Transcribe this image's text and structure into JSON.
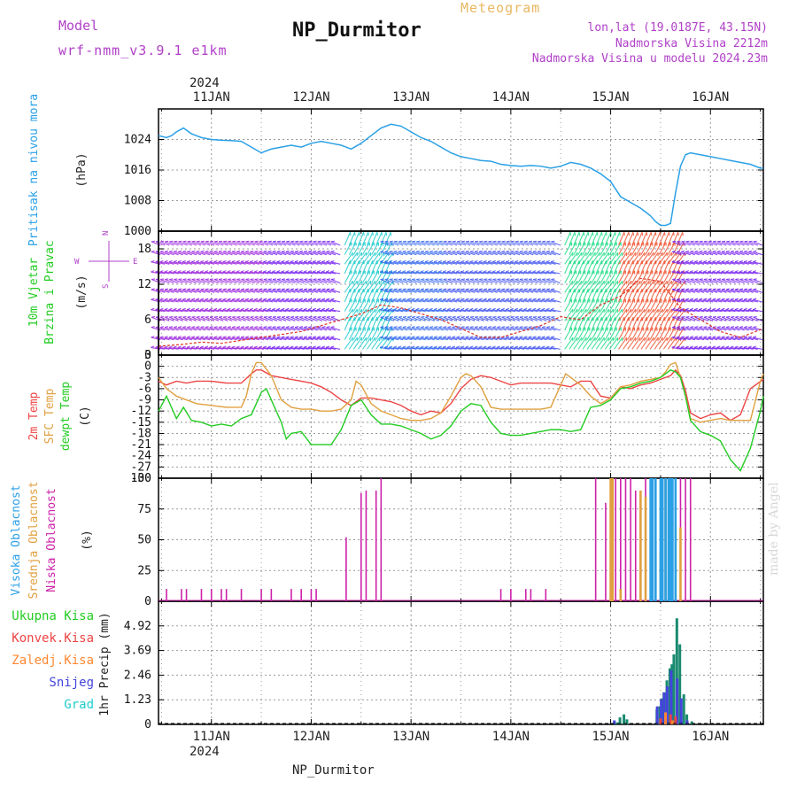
{
  "header": {
    "model_label": "Model",
    "model_name": "wrf-nmm_v3.9.1 e1km",
    "title": "NP_Durmitor",
    "subtitle": "Meteogram",
    "location_1": "lon,lat (19.0187E, 43.15N)",
    "location_2": "Nadmorska Visina 2212m",
    "location_3": "Nadmorska Visina u modelu 2024.23m",
    "footer": "NP_Durmitor",
    "credit": "made by Angel"
  },
  "colors": {
    "pressure": "#2aa0e6",
    "t2m": "#ee4444",
    "tsfc": "#e0a040",
    "dewpt": "#22cc22",
    "cloud_high": "#2aa0e6",
    "cloud_mid": "#e0a040",
    "cloud_low": "#cc22aa",
    "precip_total": "#22cc22",
    "precip_conv": "#ee4444",
    "precip_frz": "#ff8833",
    "precip_snow": "#4444dd",
    "precip_grad": "#22cccc",
    "teal_bar": "#1a8a70"
  },
  "chart_data": [
    {
      "type": "line",
      "panel": "pressure",
      "ylabel": "(hPa)",
      "side_label": "Pritisak na nivou mora",
      "ylim": [
        1000,
        1032
      ],
      "yticks": [
        "1024",
        "1016",
        "1008",
        "1000"
      ],
      "top_year": "2024",
      "x_ticks": [
        "11JAN",
        "12JAN",
        "13JAN",
        "14JAN",
        "15JAN",
        "16JAN"
      ],
      "x_start_day": 10.47,
      "x_end_day": 16.53,
      "series": [
        {
          "x": [
            10.47,
            10.55,
            10.6,
            10.65,
            10.72,
            10.8,
            10.9,
            11.0,
            11.1,
            11.2,
            11.3,
            11.4,
            11.5,
            11.6,
            11.7,
            11.8,
            11.9,
            12.0,
            12.1,
            12.2,
            12.3,
            12.4,
            12.5,
            12.6,
            12.7,
            12.8,
            12.9,
            13.0,
            13.1,
            13.2,
            13.3,
            13.4,
            13.5,
            13.6,
            13.7,
            13.8,
            13.9,
            14.0,
            14.1,
            14.2,
            14.3,
            14.4,
            14.5,
            14.6,
            14.7,
            14.8,
            14.9,
            15.0,
            15.05,
            15.1,
            15.2,
            15.3,
            15.4,
            15.45,
            15.5,
            15.55,
            15.6,
            15.65,
            15.7,
            15.75,
            15.8,
            15.9,
            16.0,
            16.1,
            16.2,
            16.3,
            16.4,
            16.5,
            16.53
          ],
          "y": [
            1025.0,
            1024.5,
            1025.0,
            1026.0,
            1027.0,
            1025.5,
            1024.5,
            1024.0,
            1023.8,
            1023.7,
            1023.5,
            1022.0,
            1020.5,
            1021.5,
            1022.0,
            1022.5,
            1022.0,
            1023.0,
            1023.5,
            1023.0,
            1022.5,
            1021.5,
            1023.0,
            1025.0,
            1027.0,
            1028.0,
            1027.5,
            1026.0,
            1024.5,
            1023.5,
            1022.0,
            1020.5,
            1019.5,
            1019.0,
            1018.5,
            1018.3,
            1017.5,
            1017.2,
            1017.0,
            1017.2,
            1017.0,
            1016.5,
            1017.0,
            1018.0,
            1017.5,
            1016.5,
            1015.0,
            1013.0,
            1011.0,
            1009.0,
            1007.5,
            1006.0,
            1004.0,
            1002.5,
            1001.5,
            1001.5,
            1002.0,
            1010.0,
            1017.0,
            1020.0,
            1020.5,
            1020.0,
            1019.5,
            1019.0,
            1018.5,
            1018.0,
            1017.5,
            1016.5,
            1016.5
          ]
        }
      ]
    },
    {
      "type": "line",
      "panel": "wind",
      "ylabel": "(m/s)",
      "side_label_1": "10m Vjetar",
      "side_label_2": "Brzina i Pravac",
      "compass": [
        "W",
        "E",
        "N",
        "S"
      ],
      "ylim": [
        0,
        21
      ],
      "yticks": [
        "18",
        "12",
        "6",
        "0"
      ],
      "series": [
        {
          "name": "Brzina",
          "x": [
            10.47,
            10.7,
            10.9,
            11.1,
            11.3,
            11.5,
            11.7,
            11.9,
            12.1,
            12.3,
            12.5,
            12.7,
            12.9,
            13.1,
            13.3,
            13.5,
            13.7,
            13.9,
            14.1,
            14.3,
            14.5,
            14.7,
            14.9,
            15.1,
            15.3,
            15.5,
            15.7,
            15.9,
            16.1,
            16.3,
            16.53
          ],
          "y": [
            1.5,
            1.8,
            2.2,
            2.0,
            2.5,
            3.0,
            3.5,
            4.0,
            5.0,
            6.0,
            7.0,
            8.5,
            8.0,
            7.0,
            6.0,
            4.5,
            3.0,
            3.0,
            4.0,
            5.0,
            6.5,
            6.0,
            8.5,
            10.0,
            13.0,
            12.5,
            8.0,
            6.0,
            4.0,
            3.0,
            4.5
          ]
        }
      ],
      "arrow_speed_bands": [
        {
          "x0": 10.47,
          "x1": 11.6,
          "speed": "low",
          "color": "#9922dd"
        },
        {
          "x0": 11.6,
          "x1": 12.3,
          "speed": "medium",
          "color": "#7722ee"
        },
        {
          "x0": 12.3,
          "x1": 12.75,
          "speed": "high",
          "color": "#22cccc"
        },
        {
          "x0": 12.75,
          "x1": 13.4,
          "speed": "medium",
          "color": "#3366ee"
        },
        {
          "x0": 13.4,
          "x1": 14.5,
          "speed": "medium",
          "color": "#4455ee"
        },
        {
          "x0": 14.5,
          "x1": 15.05,
          "speed": "high",
          "color": "#22dd88"
        },
        {
          "x0": 15.05,
          "x1": 15.7,
          "speed": "very-high",
          "color": "#ee5533"
        },
        {
          "x0": 15.7,
          "x1": 16.53,
          "speed": "medium",
          "color": "#7722ee"
        }
      ]
    },
    {
      "type": "line",
      "panel": "temperature",
      "ylabel": "(C)",
      "side_labels": [
        "2m Temp",
        "SFC Temp",
        "dewpt Temp"
      ],
      "ylim": [
        -30,
        3
      ],
      "yticks": [
        "3",
        "0",
        "-3",
        "-6",
        "-9",
        "-12",
        "-15",
        "-18",
        "-21",
        "-24",
        "-27",
        "-30"
      ],
      "series": [
        {
          "name": "2m Temp",
          "x": [
            10.47,
            10.55,
            10.65,
            10.75,
            10.85,
            11.0,
            11.15,
            11.3,
            11.4,
            11.45,
            11.5,
            11.6,
            11.7,
            11.8,
            11.9,
            12.0,
            12.1,
            12.2,
            12.3,
            12.4,
            12.5,
            12.6,
            12.7,
            12.8,
            12.9,
            13.0,
            13.1,
            13.2,
            13.3,
            13.4,
            13.5,
            13.6,
            13.7,
            13.8,
            13.9,
            14.0,
            14.1,
            14.2,
            14.3,
            14.4,
            14.5,
            14.6,
            14.7,
            14.8,
            14.9,
            15.0,
            15.1,
            15.2,
            15.3,
            15.4,
            15.5,
            15.6,
            15.65,
            15.7,
            15.75,
            15.8,
            15.9,
            16.0,
            16.1,
            16.2,
            16.3,
            16.4,
            16.53
          ],
          "y": [
            -4.0,
            -5.0,
            -4.0,
            -4.5,
            -4.0,
            -4.0,
            -4.5,
            -4.5,
            -2.0,
            -1.0,
            -1.0,
            -2.5,
            -3.0,
            -3.5,
            -4.0,
            -4.5,
            -5.5,
            -7.0,
            -9.0,
            -10.5,
            -8.5,
            -8.5,
            -9.0,
            -9.5,
            -10.5,
            -12.0,
            -13.0,
            -12.0,
            -12.5,
            -10.0,
            -6.0,
            -3.5,
            -2.5,
            -3.0,
            -4.0,
            -5.0,
            -4.5,
            -4.5,
            -4.5,
            -4.5,
            -5.0,
            -5.5,
            -4.0,
            -4.0,
            -8.0,
            -8.5,
            -5.5,
            -6.0,
            -5.0,
            -4.5,
            -3.5,
            -2.5,
            -1.0,
            -2.5,
            -6.5,
            -12.5,
            -14.0,
            -13.0,
            -12.5,
            -14.5,
            -13.0,
            -6.0,
            -3.5
          ]
        },
        {
          "name": "SFC Temp",
          "x": [
            10.47,
            10.55,
            10.65,
            10.75,
            10.85,
            11.0,
            11.15,
            11.3,
            11.35,
            11.4,
            11.45,
            11.5,
            11.6,
            11.7,
            11.8,
            11.9,
            12.0,
            12.1,
            12.2,
            12.3,
            12.4,
            12.45,
            12.5,
            12.6,
            12.65,
            12.7,
            12.8,
            12.9,
            13.0,
            13.1,
            13.2,
            13.3,
            13.4,
            13.5,
            13.55,
            13.6,
            13.7,
            13.8,
            13.9,
            14.0,
            14.1,
            14.2,
            14.3,
            14.4,
            14.5,
            14.55,
            14.6,
            14.7,
            14.8,
            14.9,
            15.0,
            15.1,
            15.2,
            15.3,
            15.4,
            15.5,
            15.55,
            15.6,
            15.65,
            15.7,
            15.75,
            15.8,
            15.9,
            16.0,
            16.1,
            16.2,
            16.3,
            16.4,
            16.5,
            16.53
          ],
          "y": [
            -3.0,
            -6.0,
            -8.0,
            -9.0,
            -10.0,
            -10.5,
            -11.0,
            -11.0,
            -8.0,
            -2.0,
            1.0,
            1.0,
            -2.5,
            -9.0,
            -11.0,
            -11.5,
            -11.5,
            -12.0,
            -12.0,
            -11.5,
            -9.0,
            -4.0,
            -5.0,
            -10.0,
            -11.0,
            -12.0,
            -13.0,
            -14.0,
            -14.5,
            -14.5,
            -14.0,
            -12.5,
            -8.0,
            -3.0,
            -2.0,
            -2.5,
            -5.5,
            -11.0,
            -11.5,
            -11.5,
            -11.5,
            -11.5,
            -11.5,
            -11.0,
            -5.0,
            -2.0,
            -3.0,
            -5.0,
            -8.0,
            -10.0,
            -8.5,
            -5.5,
            -5.0,
            -4.0,
            -3.5,
            -3.0,
            -1.5,
            0.5,
            1.0,
            -3.0,
            -8.0,
            -14.0,
            -15.0,
            -14.5,
            -14.0,
            -14.5,
            -14.5,
            -14.5,
            -4.0,
            -2.0
          ]
        },
        {
          "name": "dewpt Temp",
          "x": [
            10.47,
            10.55,
            10.65,
            10.72,
            10.8,
            10.9,
            11.0,
            11.1,
            11.2,
            11.3,
            11.4,
            11.5,
            11.55,
            11.6,
            11.7,
            11.75,
            11.8,
            11.9,
            12.0,
            12.1,
            12.2,
            12.3,
            12.4,
            12.5,
            12.6,
            12.7,
            12.8,
            12.9,
            13.0,
            13.1,
            13.2,
            13.3,
            13.4,
            13.5,
            13.6,
            13.7,
            13.8,
            13.9,
            14.0,
            14.1,
            14.2,
            14.3,
            14.4,
            14.5,
            14.6,
            14.7,
            14.8,
            14.9,
            15.0,
            15.1,
            15.2,
            15.3,
            15.4,
            15.5,
            15.55,
            15.6,
            15.65,
            15.7,
            15.75,
            15.8,
            15.9,
            16.0,
            16.1,
            16.2,
            16.3,
            16.4,
            16.5,
            16.53
          ],
          "y": [
            -12.0,
            -8.0,
            -14.0,
            -11.0,
            -14.5,
            -15.0,
            -16.0,
            -15.5,
            -16.0,
            -14.0,
            -13.0,
            -7.0,
            -6.0,
            -9.0,
            -15.0,
            -19.5,
            -18.0,
            -17.5,
            -21.0,
            -21.0,
            -21.0,
            -17.0,
            -10.5,
            -9.0,
            -13.0,
            -15.5,
            -15.5,
            -16.0,
            -17.0,
            -18.0,
            -19.5,
            -18.5,
            -16.0,
            -12.0,
            -10.0,
            -10.5,
            -15.0,
            -18.0,
            -18.5,
            -18.5,
            -18.0,
            -17.5,
            -17.0,
            -17.0,
            -17.5,
            -17.0,
            -11.0,
            -10.5,
            -9.0,
            -6.0,
            -5.5,
            -4.5,
            -4.0,
            -3.0,
            -2.0,
            -1.0,
            -1.5,
            -3.0,
            -8.0,
            -14.5,
            -17.5,
            -18.5,
            -20.0,
            -25.0,
            -28.0,
            -22.0,
            -12.0,
            -8.0
          ]
        }
      ]
    },
    {
      "type": "bar",
      "panel": "clouds",
      "ylabel": "(%)",
      "side_labels": [
        "Visoka Oblacnost",
        "Srednja Oblacnost",
        "Niska Oblacnost"
      ],
      "ylim": [
        0,
        100
      ],
      "yticks": [
        "100",
        "75",
        "50",
        "25",
        "0"
      ],
      "series": [
        {
          "name": "Niska Oblacnost",
          "x": [
            10.55,
            10.7,
            10.75,
            10.9,
            11.0,
            11.1,
            11.15,
            11.3,
            11.5,
            11.6,
            11.8,
            11.9,
            12.0,
            12.05,
            12.35,
            12.5,
            12.55,
            12.65,
            12.7,
            13.9,
            14.0,
            14.15,
            14.2,
            14.35,
            14.85,
            14.95,
            15.0,
            15.05,
            15.1,
            15.15,
            15.2,
            15.25,
            15.3,
            15.35,
            15.4,
            15.5,
            15.6,
            15.7,
            15.75,
            15.8
          ],
          "y": [
            10,
            10,
            10,
            10,
            10,
            10,
            10,
            10,
            10,
            10,
            10,
            10,
            10,
            10,
            52,
            88,
            90,
            90,
            100,
            10,
            10,
            10,
            10,
            10,
            100,
            80,
            95,
            100,
            100,
            100,
            100,
            90,
            80,
            100,
            100,
            100,
            100,
            100,
            100,
            100
          ]
        },
        {
          "name": "Srednja Oblacnost",
          "x": [
            15.0,
            15.02,
            15.1,
            15.3,
            15.35,
            15.45,
            15.5,
            15.55,
            15.6,
            15.65,
            15.7
          ],
          "y": [
            100,
            100,
            10,
            90,
            85,
            50,
            40,
            100,
            60,
            60,
            60
          ]
        },
        {
          "name": "Visoka Oblacnost",
          "x": [
            15.4,
            15.42,
            15.45,
            15.5,
            15.52,
            15.55,
            15.58,
            15.6,
            15.62,
            15.65
          ],
          "y": [
            100,
            100,
            100,
            100,
            100,
            100,
            100,
            100,
            100,
            100
          ]
        }
      ]
    },
    {
      "type": "bar",
      "panel": "precip",
      "ylabel": "1hr Precip (mm)",
      "side_labels": [
        "Ukupna Kisa",
        "Konvek.Kisa",
        "Zaledj.Kisa",
        "Snijeg",
        "Grad"
      ],
      "ylim": [
        0,
        6.15
      ],
      "yticks": [
        "4.92",
        "3.69",
        "2.46",
        "1.23",
        "0"
      ],
      "bottom_year": "2024",
      "series": [
        {
          "name": "Ukupna Kisa",
          "x": [
            15.05,
            15.08,
            15.12,
            15.15,
            15.45,
            15.48,
            15.5,
            15.52,
            15.55,
            15.58,
            15.6,
            15.62,
            15.65,
            15.68,
            15.72,
            15.75,
            15.8
          ],
          "y": [
            0.1,
            0.35,
            0.5,
            0.25,
            0.75,
            0.9,
            1.3,
            1.6,
            2.2,
            2.8,
            3.0,
            3.5,
            5.3,
            4.0,
            1.5,
            0.5,
            0.15
          ]
        },
        {
          "name": "Snijeg",
          "x": [
            15.05,
            15.48,
            15.52,
            15.55,
            15.58,
            15.62,
            15.68,
            15.72,
            15.78
          ],
          "y": [
            0.2,
            0.9,
            1.25,
            1.6,
            1.9,
            2.7,
            2.3,
            1.3,
            0.2
          ]
        },
        {
          "name": "Konvek.Kisa",
          "x": [
            15.5,
            15.6,
            15.65
          ],
          "y": [
            0.3,
            0.5,
            0.4
          ]
        },
        {
          "name": "Zaledj.Kisa",
          "x": [
            15.55,
            15.62
          ],
          "y": [
            0.6,
            0.2
          ]
        },
        {
          "name": "Grad",
          "x": [],
          "y": []
        }
      ]
    }
  ]
}
